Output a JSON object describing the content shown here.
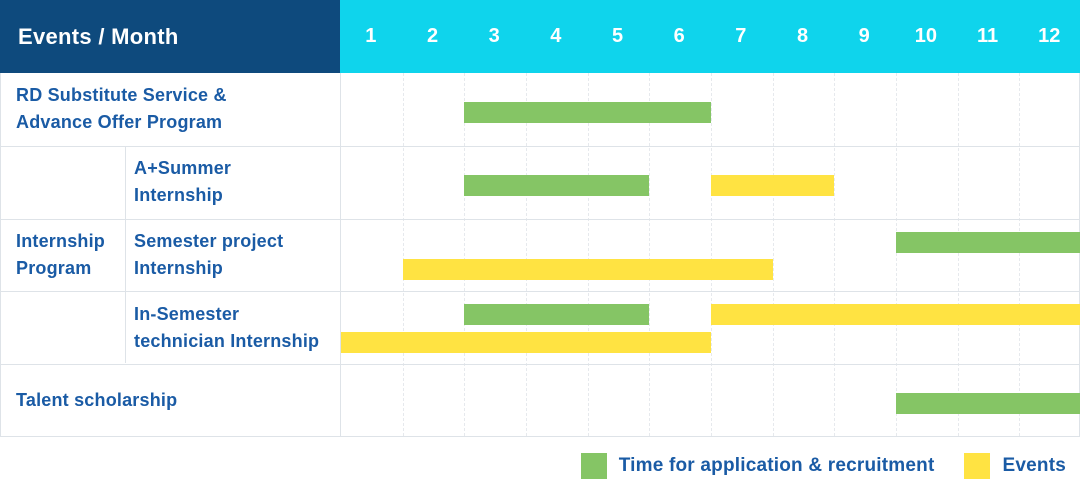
{
  "header": {
    "corner_label": "Events / Month"
  },
  "months": [
    "1",
    "2",
    "3",
    "4",
    "5",
    "6",
    "7",
    "8",
    "9",
    "10",
    "11",
    "12"
  ],
  "colors": {
    "header_navy": "#0E4A7D",
    "header_cyan": "#0FD4EC",
    "bar_green": "#85C565",
    "bar_yellow": "#FFE342",
    "label_text": "#1A5BA5",
    "grid_line": "#DEE3E8",
    "grid_dash": "#E6E9ED"
  },
  "legend": {
    "items": [
      {
        "swatch": "green",
        "label": "Time for application & recruitment"
      },
      {
        "swatch": "yellow",
        "label": "Events"
      }
    ]
  },
  "chart_data": {
    "type": "table",
    "subtype": "gantt",
    "title": "Events / Month",
    "x_axis": {
      "unit": "month",
      "range": [
        1,
        12
      ],
      "ticks": [
        1,
        2,
        3,
        4,
        5,
        6,
        7,
        8,
        9,
        10,
        11,
        12
      ]
    },
    "series_legend": [
      {
        "name": "Time for application & recruitment",
        "color": "#85C565"
      },
      {
        "name": "Events",
        "color": "#FFE342"
      }
    ],
    "group_label": "Internship\nProgram",
    "rows": [
      {
        "label": "RD Substitute Service &\nAdvance Offer Program",
        "group": null,
        "bars": [
          {
            "series": "Time for application & recruitment",
            "color": "green",
            "start_month": 3,
            "end_month": 6,
            "lane": "single"
          }
        ]
      },
      {
        "label": "A+Summer\nInternship",
        "group": "Internship Program",
        "bars": [
          {
            "series": "Time for application & recruitment",
            "color": "green",
            "start_month": 3,
            "end_month": 5,
            "lane": "single"
          },
          {
            "series": "Events",
            "color": "yellow",
            "start_month": 7,
            "end_month": 8,
            "lane": "single"
          }
        ]
      },
      {
        "label": "Semester project\nInternship",
        "group": "Internship Program",
        "bars": [
          {
            "series": "Time for application & recruitment",
            "color": "green",
            "start_month": 10,
            "end_month": 12,
            "lane": "top"
          },
          {
            "series": "Events",
            "color": "yellow",
            "start_month": 2,
            "end_month": 7,
            "lane": "bottom"
          }
        ]
      },
      {
        "label": "In-Semester\ntechnician Internship",
        "group": "Internship Program",
        "bars": [
          {
            "series": "Time for application & recruitment",
            "color": "green",
            "start_month": 3,
            "end_month": 5,
            "lane": "top"
          },
          {
            "series": "Events",
            "color": "yellow",
            "start_month": 7,
            "end_month": 12,
            "lane": "top"
          },
          {
            "series": "Events",
            "color": "yellow",
            "start_month": 1,
            "end_month": 6,
            "lane": "bottom"
          }
        ]
      },
      {
        "label": "Talent scholarship",
        "group": null,
        "bars": [
          {
            "series": "Time for application & recruitment",
            "color": "green",
            "start_month": 10,
            "end_month": 12,
            "lane": "single"
          }
        ]
      }
    ]
  }
}
